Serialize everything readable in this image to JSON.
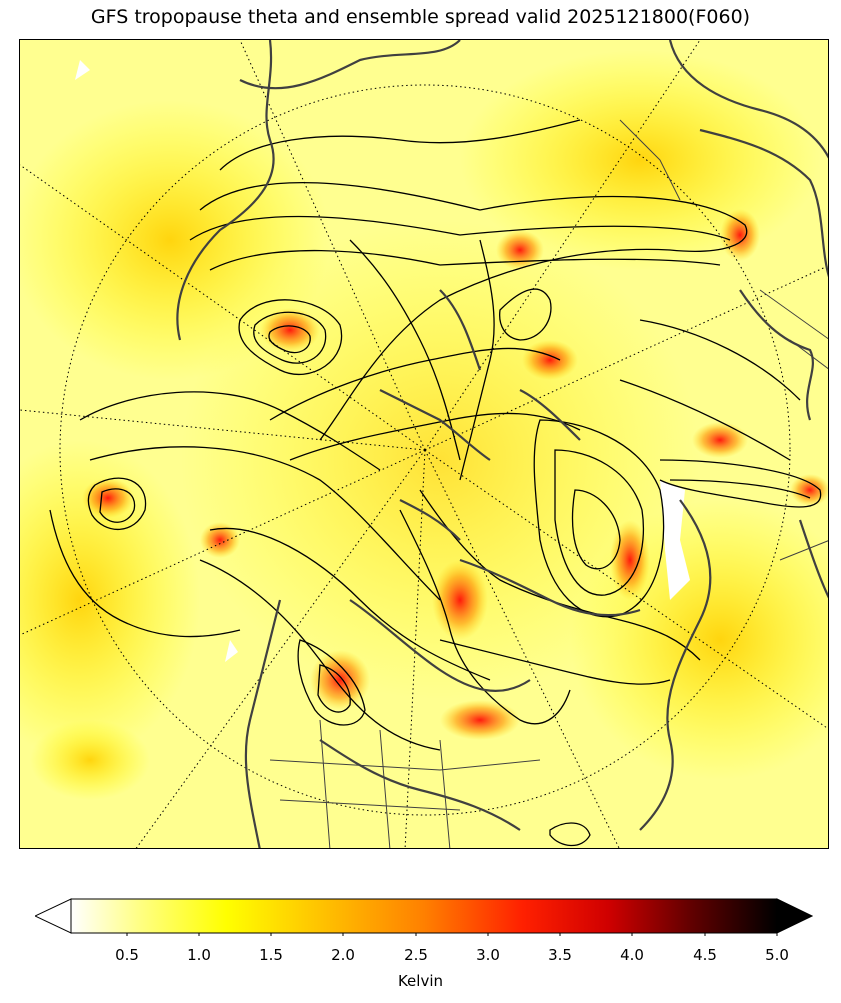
{
  "title": "GFS tropopause theta and ensemble spread valid 2025121800(F060)",
  "colorbar": {
    "label": "Kelvin",
    "ticks": [
      "0.5",
      "1.0",
      "1.5",
      "2.0",
      "2.5",
      "3.0",
      "3.5",
      "4.0",
      "4.5",
      "5.0"
    ],
    "colormap": "hot_r",
    "range": [
      0.0,
      5.0
    ],
    "extend": "both",
    "stops": [
      "#ffffff",
      "#ffff80",
      "#ffff00",
      "#ffc000",
      "#ff8000",
      "#ff2000",
      "#d00000",
      "#800000",
      "#200000",
      "#000000"
    ]
  },
  "map": {
    "projection": "north polar stereographic",
    "background_color": "#ffff8c",
    "contour_color": "#000000",
    "coastline_color": "#404040"
  }
}
